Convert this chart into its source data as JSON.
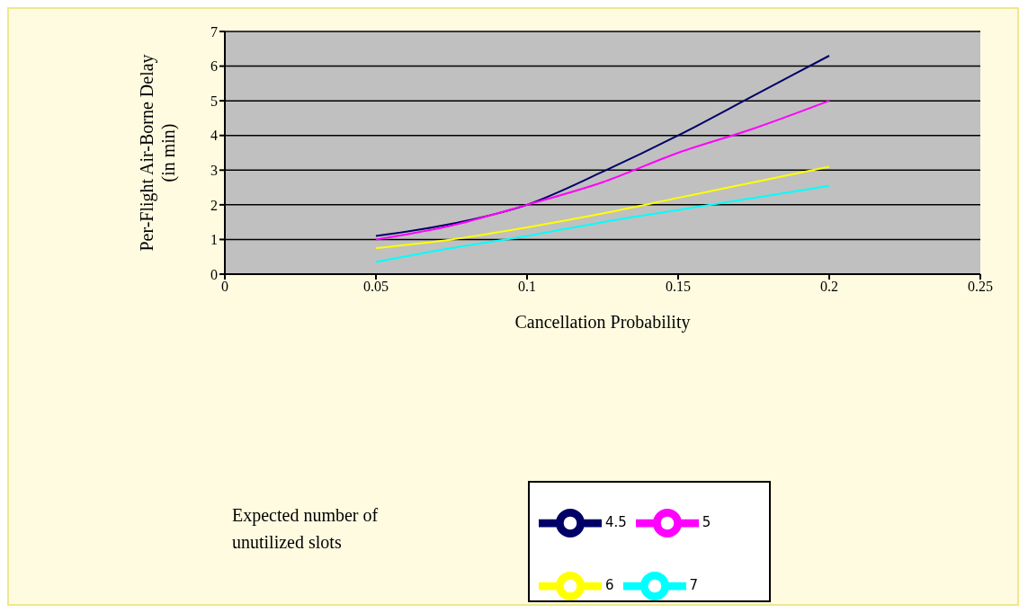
{
  "chart_data": {
    "type": "line",
    "xlabel": "Cancellation Probability",
    "ylabel": "Per-Flight Air-Borne Delay (in min)",
    "legend_title": "Expected number of unutilized slots",
    "x": [
      0.05,
      0.075,
      0.1,
      0.125,
      0.15,
      0.175,
      0.2
    ],
    "series": [
      {
        "name": "4.5",
        "color": "#000066",
        "values": [
          1.1,
          1.45,
          2.0,
          2.95,
          4.0,
          5.15,
          6.3
        ]
      },
      {
        "name": "5",
        "color": "#ff00ff",
        "values": [
          1.0,
          1.4,
          2.0,
          2.65,
          3.5,
          4.2,
          5.0
        ]
      },
      {
        "name": "6",
        "color": "#ffff00",
        "values": [
          0.75,
          1.0,
          1.35,
          1.75,
          2.2,
          2.65,
          3.1
        ]
      },
      {
        "name": "7",
        "color": "#00ffff",
        "values": [
          0.35,
          0.75,
          1.1,
          1.5,
          1.85,
          2.2,
          2.55
        ]
      }
    ],
    "xlim": [
      0,
      0.25
    ],
    "xticks": [
      0,
      0.05,
      0.1,
      0.15,
      0.2,
      0.25
    ],
    "ylim": [
      0,
      7
    ],
    "yticks": [
      0,
      1,
      2,
      3,
      4,
      5,
      6,
      7
    ],
    "grid": "y",
    "legend": "bottom",
    "marker": "none",
    "line_style": "solid"
  }
}
